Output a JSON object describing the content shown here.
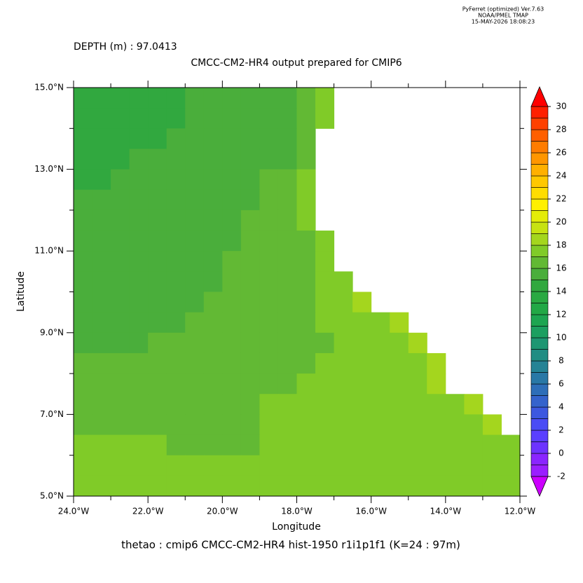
{
  "chart_data": {
    "type": "raster-map",
    "header": [
      "PyFerret (optimized) Ver.7.63",
      "NOAA/PMEL TMAP",
      "15-MAY-2026 18:08:23"
    ],
    "subtitle": "DEPTH (m) : 97.0413",
    "title": "CMCC-CM2-HR4 output prepared for CMIP6",
    "xlabel": "Longitude",
    "ylabel": "Latitude",
    "footer": "thetao : cmip6 CMCC-CM2-HR4 hist-1950 r1i1p1f1   (K=24 : 97m)",
    "xlim": [
      -24,
      -12
    ],
    "ylim": [
      5,
      15
    ],
    "xticks": [
      {
        "value": -24,
        "label": "24.0°W"
      },
      {
        "value": -22,
        "label": "22.0°W"
      },
      {
        "value": -20,
        "label": "20.0°W"
      },
      {
        "value": -18,
        "label": "18.0°W"
      },
      {
        "value": -16,
        "label": "16.0°W"
      },
      {
        "value": -14,
        "label": "14.0°W"
      },
      {
        "value": -12,
        "label": "12.0°W"
      }
    ],
    "xticks_minor": [
      -23,
      -21,
      -19,
      -17,
      -15,
      -13
    ],
    "yticks": [
      {
        "value": 5,
        "label": "5.0°N"
      },
      {
        "value": 7,
        "label": "7.0°N"
      },
      {
        "value": 9,
        "label": "9.0°N"
      },
      {
        "value": 11,
        "label": "11.0°N"
      },
      {
        "value": 13,
        "label": "13.0°N"
      },
      {
        "value": 15,
        "label": "15.0°N"
      }
    ],
    "yticks_minor": [
      6,
      8,
      10,
      12,
      14
    ],
    "x": [
      -23.75,
      -23.25,
      -22.75,
      -22.25,
      -21.75,
      -21.25,
      -20.75,
      -20.25,
      -19.75,
      -19.25,
      -18.75,
      -18.25,
      -17.75,
      -17.25,
      -16.75,
      -16.25,
      -15.75,
      -15.25,
      -14.75,
      -14.25,
      -13.75,
      -13.25,
      -12.75,
      -12.25
    ],
    "y": [
      14.75,
      14.25,
      13.75,
      13.25,
      12.75,
      12.25,
      11.75,
      11.25,
      10.75,
      10.25,
      9.75,
      9.25,
      8.75,
      8.25,
      7.75,
      7.25,
      6.75,
      6.25,
      5.75,
      5.25
    ],
    "values": [
      [
        14.5,
        14.5,
        14.5,
        14.5,
        14.5,
        14.5,
        15.5,
        15.5,
        15.5,
        15.5,
        15.5,
        15.5,
        16.5,
        17.5,
        null,
        null,
        null,
        null,
        null,
        null,
        null,
        null,
        null,
        null
      ],
      [
        14.5,
        14.5,
        14.5,
        14.5,
        14.5,
        14.5,
        15.5,
        15.5,
        15.5,
        15.5,
        15.5,
        15.5,
        16.5,
        17.5,
        null,
        null,
        null,
        null,
        null,
        null,
        null,
        null,
        null,
        null
      ],
      [
        14.5,
        14.5,
        14.5,
        14.5,
        14.5,
        15.5,
        15.5,
        15.5,
        15.5,
        15.5,
        15.5,
        15.5,
        16.5,
        null,
        null,
        null,
        null,
        null,
        null,
        null,
        null,
        null,
        null,
        null
      ],
      [
        14.5,
        14.5,
        14.5,
        15.5,
        15.5,
        15.5,
        15.5,
        15.5,
        15.5,
        15.5,
        15.5,
        15.5,
        16.5,
        null,
        null,
        null,
        null,
        null,
        null,
        null,
        null,
        null,
        null,
        null
      ],
      [
        14.5,
        14.5,
        15.5,
        15.5,
        15.5,
        15.5,
        15.5,
        15.5,
        15.5,
        15.5,
        16.5,
        16.5,
        17.5,
        null,
        null,
        null,
        null,
        null,
        null,
        null,
        null,
        null,
        null,
        null
      ],
      [
        15.5,
        15.5,
        15.5,
        15.5,
        15.5,
        15.5,
        15.5,
        15.5,
        15.5,
        15.5,
        16.5,
        16.5,
        17.5,
        null,
        null,
        null,
        null,
        null,
        null,
        null,
        null,
        null,
        null,
        null
      ],
      [
        15.5,
        15.5,
        15.5,
        15.5,
        15.5,
        15.5,
        15.5,
        15.5,
        15.5,
        16.5,
        16.5,
        16.5,
        17.5,
        null,
        null,
        null,
        null,
        null,
        null,
        null,
        null,
        null,
        null,
        null
      ],
      [
        15.5,
        15.5,
        15.5,
        15.5,
        15.5,
        15.5,
        15.5,
        15.5,
        15.5,
        16.5,
        16.5,
        16.5,
        16.5,
        17.5,
        null,
        null,
        null,
        null,
        null,
        null,
        null,
        null,
        null,
        null
      ],
      [
        15.5,
        15.5,
        15.5,
        15.5,
        15.5,
        15.5,
        15.5,
        15.5,
        16.5,
        16.5,
        16.5,
        16.5,
        16.5,
        17.5,
        null,
        null,
        null,
        null,
        null,
        null,
        null,
        null,
        null,
        null
      ],
      [
        15.5,
        15.5,
        15.5,
        15.5,
        15.5,
        15.5,
        15.5,
        15.5,
        16.5,
        16.5,
        16.5,
        16.5,
        16.5,
        17.5,
        17.5,
        null,
        null,
        null,
        null,
        null,
        null,
        null,
        null,
        null
      ],
      [
        15.5,
        15.5,
        15.5,
        15.5,
        15.5,
        15.5,
        15.5,
        16.5,
        16.5,
        16.5,
        16.5,
        16.5,
        16.5,
        17.5,
        17.5,
        18.5,
        null,
        null,
        null,
        null,
        null,
        null,
        null,
        null
      ],
      [
        15.5,
        15.5,
        15.5,
        15.5,
        15.5,
        15.5,
        16.5,
        16.5,
        16.5,
        16.5,
        16.5,
        16.5,
        16.5,
        17.5,
        17.5,
        17.5,
        17.5,
        18.5,
        null,
        null,
        null,
        null,
        null,
        null
      ],
      [
        15.5,
        15.5,
        15.5,
        15.5,
        16.5,
        16.5,
        16.5,
        16.5,
        16.5,
        16.5,
        16.5,
        16.5,
        16.5,
        16.5,
        17.5,
        17.5,
        17.5,
        17.5,
        18.5,
        null,
        null,
        null,
        null,
        null
      ],
      [
        16.5,
        16.5,
        16.5,
        16.5,
        16.5,
        16.5,
        16.5,
        16.5,
        16.5,
        16.5,
        16.5,
        16.5,
        16.5,
        17.5,
        17.5,
        17.5,
        17.5,
        17.5,
        17.5,
        18.5,
        null,
        null,
        null,
        null
      ],
      [
        16.5,
        16.5,
        16.5,
        16.5,
        16.5,
        16.5,
        16.5,
        16.5,
        16.5,
        16.5,
        16.5,
        16.5,
        17.5,
        17.5,
        17.5,
        17.5,
        17.5,
        17.5,
        17.5,
        18.5,
        null,
        null,
        null,
        null
      ],
      [
        16.5,
        16.5,
        16.5,
        16.5,
        16.5,
        16.5,
        16.5,
        16.5,
        16.5,
        16.5,
        17.5,
        17.5,
        17.5,
        17.5,
        17.5,
        17.5,
        17.5,
        17.5,
        17.5,
        17.5,
        17.5,
        18.5,
        null,
        null
      ],
      [
        16.5,
        16.5,
        16.5,
        16.5,
        16.5,
        16.5,
        16.5,
        16.5,
        16.5,
        16.5,
        17.5,
        17.5,
        17.5,
        17.5,
        17.5,
        17.5,
        17.5,
        17.5,
        17.5,
        17.5,
        17.5,
        17.5,
        18.5,
        null
      ],
      [
        17.5,
        17.5,
        17.5,
        17.5,
        17.5,
        16.5,
        16.5,
        16.5,
        16.5,
        16.5,
        17.5,
        17.5,
        17.5,
        17.5,
        17.5,
        17.5,
        17.5,
        17.5,
        17.5,
        17.5,
        17.5,
        17.5,
        17.5,
        17.5
      ],
      [
        17.5,
        17.5,
        17.5,
        17.5,
        17.5,
        17.5,
        17.5,
        17.5,
        17.5,
        17.5,
        17.5,
        17.5,
        17.5,
        17.5,
        17.5,
        17.5,
        17.5,
        17.5,
        17.5,
        17.5,
        17.5,
        17.5,
        17.5,
        17.5
      ],
      [
        17.5,
        17.5,
        17.5,
        17.5,
        17.5,
        17.5,
        17.5,
        17.5,
        17.5,
        17.5,
        17.5,
        17.5,
        17.5,
        17.5,
        17.5,
        17.5,
        17.5,
        17.5,
        17.5,
        17.5,
        17.5,
        17.5,
        17.5,
        17.5
      ]
    ],
    "colorbar": {
      "lim": [
        -2,
        30
      ],
      "ticks": [
        -2,
        0,
        2,
        4,
        6,
        8,
        10,
        12,
        14,
        16,
        18,
        20,
        22,
        24,
        26,
        28,
        30
      ],
      "colors": [
        "#9a1fff",
        "#8a25ff",
        "#6d33ff",
        "#5a3fff",
        "#4a4cf5",
        "#3d58e0",
        "#3563cc",
        "#2e6eb8",
        "#2978a6",
        "#258395",
        "#218d83",
        "#1e9672",
        "#1c9f60",
        "#1da551",
        "#22a846",
        "#2aa942",
        "#31a83f",
        "#4aae3b",
        "#62b934",
        "#80cb28",
        "#a4d61e",
        "#c7e212",
        "#e4ec08",
        "#fff000",
        "#ffdd00",
        "#ffc800",
        "#ffb000",
        "#ff9600",
        "#ff7c00",
        "#ff5f00",
        "#ff4000",
        "#ff2000"
      ],
      "under_color": "#cc00ff",
      "over_color": "#ff0000"
    }
  }
}
